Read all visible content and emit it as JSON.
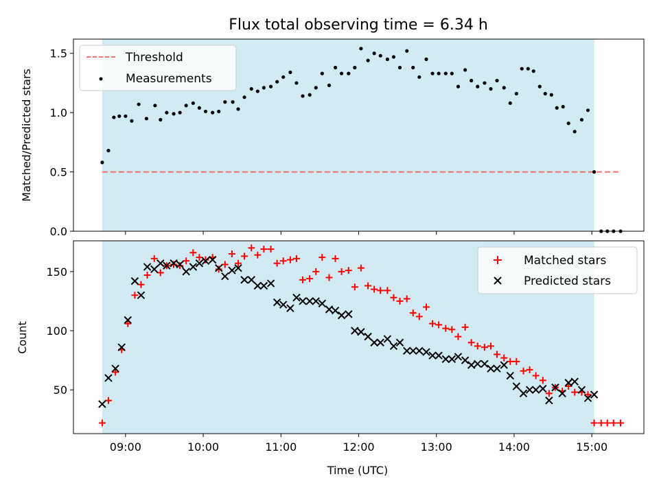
{
  "chart_data": {
    "title": "Flux total observing time = 6.34 h",
    "xlabel": "Time (UTC)",
    "x_ticks": [
      "09:00",
      "10:00",
      "11:00",
      "12:00",
      "13:00",
      "14:00",
      "15:00"
    ],
    "x_range_hours": [
      8.33,
      15.67
    ],
    "observing_window_hours": [
      8.7,
      15.03
    ],
    "colors": {
      "window": "#add8e6",
      "threshold": "#f07070",
      "matched": "#ff0000",
      "predicted": "#000000"
    },
    "panels": [
      {
        "type": "scatter",
        "ylabel": "Matched/Predicted stars",
        "ylim": [
          0,
          1.62
        ],
        "y_ticks": [
          "0.0",
          "0.5",
          "1.0",
          "1.5"
        ],
        "legend_position": "upper left",
        "threshold": {
          "name": "Threshold",
          "value": 0.5
        },
        "series": [
          {
            "name": "Measurements",
            "points": [
              [
                8.7,
                0.58
              ],
              [
                8.78,
                0.68
              ],
              [
                8.85,
                0.96
              ],
              [
                8.92,
                0.97
              ],
              [
                9.0,
                0.97
              ],
              [
                9.08,
                0.93
              ],
              [
                9.17,
                1.07
              ],
              [
                9.27,
                0.95
              ],
              [
                9.38,
                1.06
              ],
              [
                9.45,
                0.94
              ],
              [
                9.53,
                1.0
              ],
              [
                9.62,
                0.99
              ],
              [
                9.7,
                1.0
              ],
              [
                9.78,
                1.06
              ],
              [
                9.87,
                1.08
              ],
              [
                9.95,
                1.04
              ],
              [
                10.03,
                1.01
              ],
              [
                10.12,
                1.0
              ],
              [
                10.2,
                1.01
              ],
              [
                10.28,
                1.09
              ],
              [
                10.38,
                1.09
              ],
              [
                10.45,
                1.03
              ],
              [
                10.53,
                1.13
              ],
              [
                10.62,
                1.2
              ],
              [
                10.7,
                1.18
              ],
              [
                10.78,
                1.21
              ],
              [
                10.87,
                1.22
              ],
              [
                10.95,
                1.26
              ],
              [
                11.03,
                1.3
              ],
              [
                11.12,
                1.34
              ],
              [
                11.2,
                1.25
              ],
              [
                11.28,
                1.14
              ],
              [
                11.37,
                1.15
              ],
              [
                11.45,
                1.21
              ],
              [
                11.53,
                1.33
              ],
              [
                11.62,
                1.23
              ],
              [
                11.7,
                1.38
              ],
              [
                11.78,
                1.33
              ],
              [
                11.87,
                1.33
              ],
              [
                11.95,
                1.38
              ],
              [
                12.03,
                1.54
              ],
              [
                12.12,
                1.44
              ],
              [
                12.2,
                1.5
              ],
              [
                12.28,
                1.48
              ],
              [
                12.37,
                1.45
              ],
              [
                12.45,
                1.47
              ],
              [
                12.53,
                1.38
              ],
              [
                12.62,
                1.52
              ],
              [
                12.7,
                1.38
              ],
              [
                12.78,
                1.3
              ],
              [
                12.87,
                1.45
              ],
              [
                12.95,
                1.33
              ],
              [
                13.03,
                1.33
              ],
              [
                13.12,
                1.33
              ],
              [
                13.2,
                1.33
              ],
              [
                13.28,
                1.22
              ],
              [
                13.37,
                1.36
              ],
              [
                13.45,
                1.27
              ],
              [
                13.53,
                1.22
              ],
              [
                13.62,
                1.25
              ],
              [
                13.7,
                1.2
              ],
              [
                13.78,
                1.27
              ],
              [
                13.87,
                1.21
              ],
              [
                13.95,
                1.08
              ],
              [
                14.03,
                1.16
              ],
              [
                14.1,
                1.37
              ],
              [
                14.18,
                1.37
              ],
              [
                14.25,
                1.35
              ],
              [
                14.33,
                1.22
              ],
              [
                14.4,
                1.16
              ],
              [
                14.48,
                1.15
              ],
              [
                14.55,
                1.04
              ],
              [
                14.63,
                1.05
              ],
              [
                14.7,
                0.91
              ],
              [
                14.78,
                0.84
              ],
              [
                14.87,
                0.94
              ],
              [
                14.95,
                1.02
              ],
              [
                15.03,
                0.5
              ],
              [
                15.12,
                0.0
              ],
              [
                15.2,
                0.0
              ],
              [
                15.28,
                0.0
              ],
              [
                15.37,
                0.0
              ]
            ]
          }
        ]
      },
      {
        "type": "scatter",
        "ylabel": "Count",
        "ylim": [
          13,
          176
        ],
        "y_ticks": [
          "50",
          "100",
          "150"
        ],
        "legend_position": "upper right",
        "series": [
          {
            "name": "Matched stars",
            "marker": "plus",
            "points": [
              [
                8.7,
                22
              ],
              [
                8.78,
                41
              ],
              [
                8.87,
                65
              ],
              [
                8.95,
                84
              ],
              [
                9.03,
                106
              ],
              [
                9.12,
                130
              ],
              [
                9.2,
                139
              ],
              [
                9.28,
                147
              ],
              [
                9.37,
                161
              ],
              [
                9.45,
                149
              ],
              [
                9.53,
                155
              ],
              [
                9.62,
                156
              ],
              [
                9.7,
                155
              ],
              [
                9.78,
                159
              ],
              [
                9.87,
                166
              ],
              [
                9.95,
                162
              ],
              [
                10.03,
                160
              ],
              [
                10.12,
                162
              ],
              [
                10.2,
                152
              ],
              [
                10.28,
                156
              ],
              [
                10.37,
                165
              ],
              [
                10.45,
                157
              ],
              [
                10.53,
                163
              ],
              [
                10.62,
                170
              ],
              [
                10.7,
                164
              ],
              [
                10.78,
                169
              ],
              [
                10.87,
                169
              ],
              [
                10.95,
                157
              ],
              [
                11.03,
                159
              ],
              [
                11.12,
                160
              ],
              [
                11.2,
                161
              ],
              [
                11.28,
                143
              ],
              [
                11.37,
                144
              ],
              [
                11.45,
                150
              ],
              [
                11.53,
                162
              ],
              [
                11.62,
                145
              ],
              [
                11.7,
                161
              ],
              [
                11.78,
                150
              ],
              [
                11.87,
                151
              ],
              [
                11.95,
                137
              ],
              [
                12.03,
                153
              ],
              [
                12.12,
                138
              ],
              [
                12.2,
                135
              ],
              [
                12.28,
                134
              ],
              [
                12.37,
                134
              ],
              [
                12.45,
                128
              ],
              [
                12.53,
                125
              ],
              [
                12.62,
                127
              ],
              [
                12.7,
                115
              ],
              [
                12.78,
                112
              ],
              [
                12.87,
                120
              ],
              [
                12.95,
                106
              ],
              [
                13.03,
                105
              ],
              [
                13.12,
                102
              ],
              [
                13.2,
                101
              ],
              [
                13.28,
                95
              ],
              [
                13.37,
                103
              ],
              [
                13.45,
                90
              ],
              [
                13.53,
                87
              ],
              [
                13.62,
                86
              ],
              [
                13.7,
                87
              ],
              [
                13.78,
                80
              ],
              [
                13.87,
                77
              ],
              [
                13.95,
                74
              ],
              [
                14.03,
                74
              ],
              [
                14.12,
                66
              ],
              [
                14.2,
                67
              ],
              [
                14.28,
                62
              ],
              [
                14.37,
                58
              ],
              [
                14.45,
                47
              ],
              [
                14.53,
                52
              ],
              [
                14.62,
                49
              ],
              [
                14.7,
                53
              ],
              [
                14.78,
                48
              ],
              [
                14.87,
                48
              ],
              [
                14.95,
                46
              ],
              [
                15.03,
                22
              ],
              [
                15.12,
                22
              ],
              [
                15.2,
                22
              ],
              [
                15.28,
                22
              ],
              [
                15.37,
                22
              ]
            ]
          },
          {
            "name": "Predicted stars",
            "marker": "x",
            "points": [
              [
                8.7,
                38
              ],
              [
                8.78,
                60
              ],
              [
                8.87,
                68
              ],
              [
                8.95,
                86
              ],
              [
                9.03,
                109
              ],
              [
                9.12,
                142
              ],
              [
                9.2,
                130
              ],
              [
                9.28,
                154
              ],
              [
                9.37,
                152
              ],
              [
                9.45,
                157
              ],
              [
                9.53,
                155
              ],
              [
                9.62,
                157
              ],
              [
                9.7,
                156
              ],
              [
                9.78,
                150
              ],
              [
                9.87,
                154
              ],
              [
                9.95,
                157
              ],
              [
                10.03,
                159
              ],
              [
                10.12,
                160
              ],
              [
                10.2,
                153
              ],
              [
                10.28,
                146
              ],
              [
                10.37,
                151
              ],
              [
                10.45,
                153
              ],
              [
                10.53,
                143
              ],
              [
                10.62,
                143
              ],
              [
                10.7,
                138
              ],
              [
                10.78,
                138
              ],
              [
                10.87,
                140
              ],
              [
                10.95,
                124
              ],
              [
                11.03,
                122
              ],
              [
                11.12,
                119
              ],
              [
                11.2,
                128
              ],
              [
                11.28,
                125
              ],
              [
                11.37,
                125
              ],
              [
                11.45,
                125
              ],
              [
                11.53,
                123
              ],
              [
                11.62,
                118
              ],
              [
                11.7,
                117
              ],
              [
                11.78,
                113
              ],
              [
                11.87,
                114
              ],
              [
                11.95,
                100
              ],
              [
                12.03,
                99
              ],
              [
                12.12,
                95
              ],
              [
                12.2,
                90
              ],
              [
                12.28,
                90
              ],
              [
                12.37,
                93
              ],
              [
                12.45,
                87
              ],
              [
                12.53,
                90
              ],
              [
                12.62,
                83
              ],
              [
                12.7,
                83
              ],
              [
                12.78,
                83
              ],
              [
                12.87,
                82
              ],
              [
                12.95,
                79
              ],
              [
                13.03,
                79
              ],
              [
                13.12,
                76
              ],
              [
                13.2,
                76
              ],
              [
                13.28,
                78
              ],
              [
                13.37,
                75
              ],
              [
                13.45,
                71
              ],
              [
                13.53,
                72
              ],
              [
                13.62,
                72
              ],
              [
                13.7,
                68
              ],
              [
                13.78,
                68
              ],
              [
                13.87,
                71
              ],
              [
                13.95,
                62
              ],
              [
                14.03,
                53
              ],
              [
                14.12,
                47
              ],
              [
                14.2,
                50
              ],
              [
                14.28,
                50
              ],
              [
                14.37,
                51
              ],
              [
                14.45,
                41
              ],
              [
                14.53,
                52
              ],
              [
                14.62,
                47
              ],
              [
                14.7,
                56
              ],
              [
                14.78,
                57
              ],
              [
                14.87,
                50
              ],
              [
                14.95,
                43
              ],
              [
                15.03,
                46
              ]
            ]
          }
        ]
      }
    ]
  }
}
